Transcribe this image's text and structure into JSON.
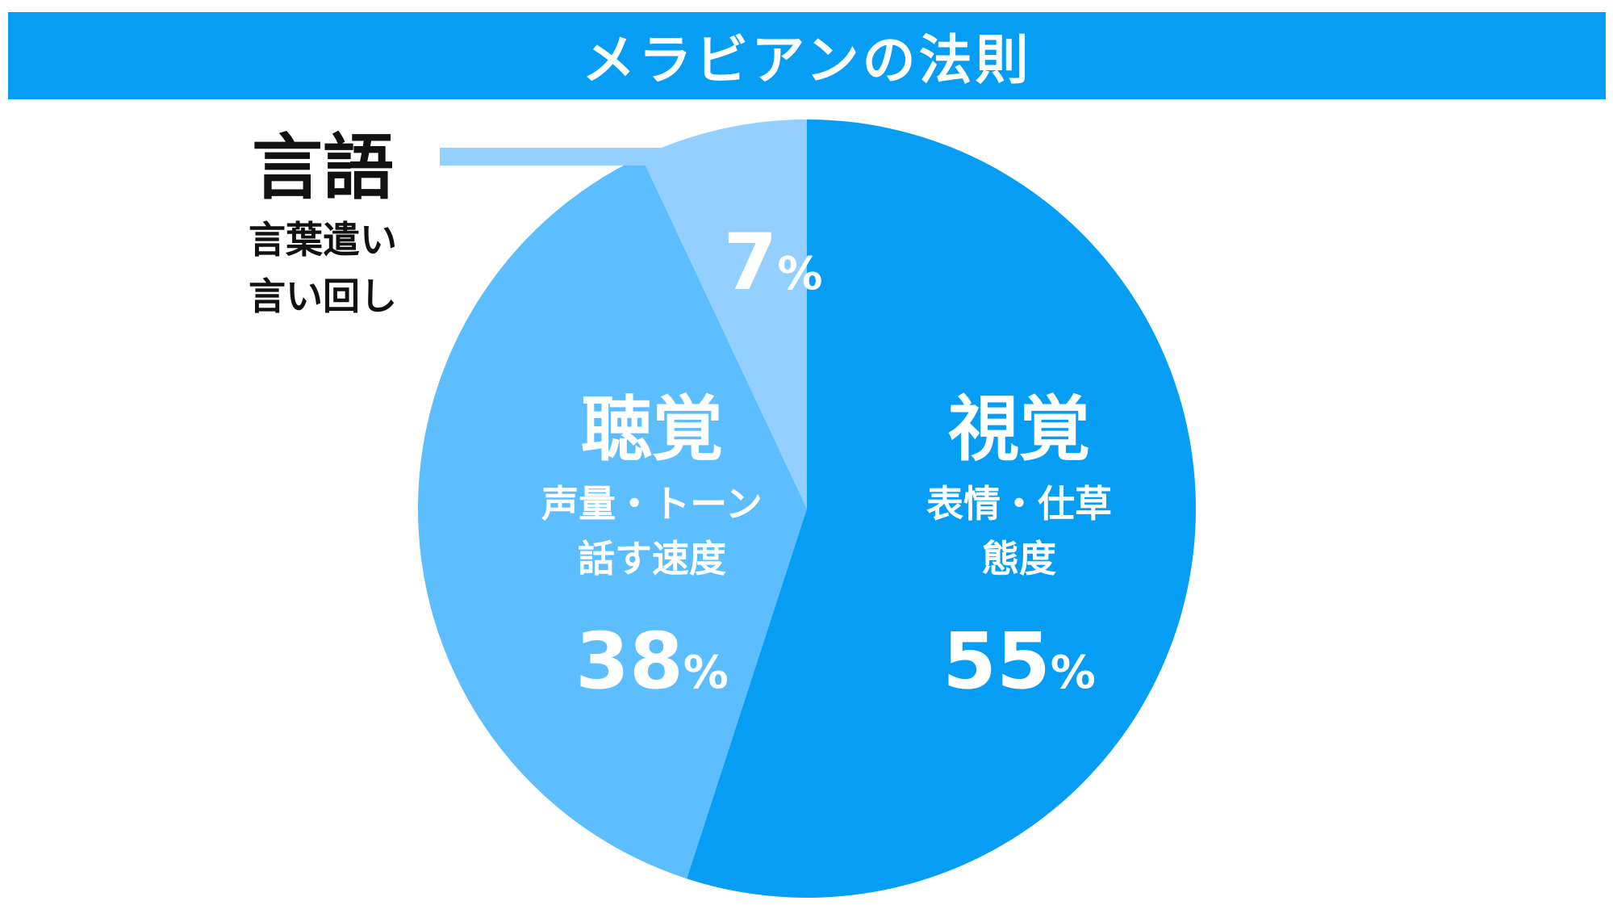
{
  "title": "メラビアンの法則",
  "chart_data": {
    "type": "pie",
    "start_angle_deg": 0,
    "direction": "clockwise",
    "slices": [
      {
        "category": "視覚",
        "description": [
          "表情・仕草",
          "態度"
        ],
        "value": 55,
        "value_text": "55",
        "unit": "%",
        "color": "#069df5",
        "text_color": "#ffffff"
      },
      {
        "category": "聴覚",
        "description": [
          "声量・トーン",
          "話す速度"
        ],
        "value": 38,
        "value_text": "38",
        "unit": "%",
        "color": "#5cbdff",
        "text_color": "#ffffff"
      },
      {
        "category": "言語",
        "description": [
          "言葉遣い",
          "言い回し"
        ],
        "value": 7,
        "value_text": "7",
        "unit": "%",
        "color": "#94d0ff",
        "text_color": "#ffffff",
        "external_label_color": "#111111"
      }
    ]
  },
  "colors": {
    "banner": "#069df5",
    "title_text": "#ffffff"
  }
}
